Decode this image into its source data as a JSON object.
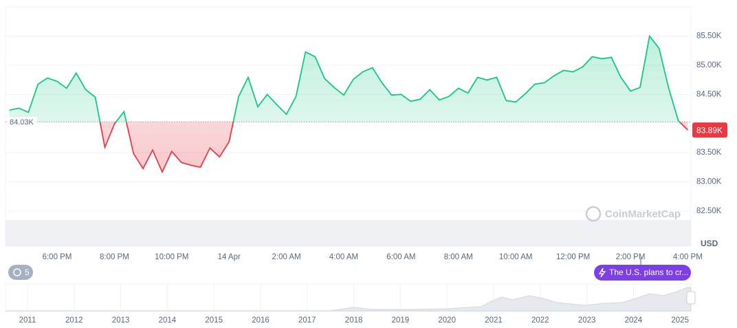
{
  "chart_data": {
    "type": "line",
    "values": [
      84229,
      84265,
      84194,
      84676,
      84782,
      84724,
      84606,
      84865,
      84582,
      84453,
      83594,
      83994,
      84206,
      83488,
      83229,
      83547,
      83171,
      83524,
      83335,
      83288,
      83253,
      83582,
      83429,
      83688,
      84465,
      84794,
      84288,
      84500,
      84323,
      84159,
      84465,
      85229,
      85147,
      84771,
      84618,
      84488,
      84759,
      84888,
      84959,
      84700,
      84488,
      84500,
      84382,
      84418,
      84582,
      84406,
      84465,
      84606,
      84524,
      84794,
      84747,
      84794,
      84394,
      84371,
      84512,
      84676,
      84700,
      84818,
      84912,
      84888,
      84971,
      85147,
      85112,
      85135,
      84794,
      84559,
      84618,
      85500,
      85288,
      84606,
      84053,
      83890
    ],
    "color_up": "#16c784",
    "color_down": "#ea3943",
    "ylim": [
      81900,
      86000
    ],
    "yticks": [
      {
        "value": 82500,
        "label": "82.50K"
      },
      {
        "value": 83000,
        "label": "83.00K"
      },
      {
        "value": 83500,
        "label": "83.50K"
      },
      {
        "value": 84500,
        "label": "84.50K"
      },
      {
        "value": 85000,
        "label": "85.00K"
      },
      {
        "value": 85500,
        "label": "85.50K"
      }
    ],
    "grid": true,
    "y_unit": "USD",
    "baseline": {
      "value": 84030,
      "label": "84.03K"
    },
    "last_price": {
      "value": 83890,
      "label": "83.89K"
    },
    "xtick_labels": [
      "6:00 PM",
      "8:00 PM",
      "10:00 PM",
      "14 Apr",
      "2:00 AM",
      "4:00 AM",
      "6:00 AM",
      "8:00 AM",
      "10:00 AM",
      "12:00 PM",
      "2:00 PM",
      "4:00 PM"
    ],
    "watermark": "CoinMarketCap",
    "navigator_years": [
      2011,
      2012,
      2013,
      2014,
      2015,
      2016,
      2017,
      2018,
      2019,
      2020,
      2021,
      2022,
      2023,
      2024,
      2025
    ]
  },
  "controls": {
    "history_count": 5,
    "news": "The U.S. plans to cr..."
  }
}
